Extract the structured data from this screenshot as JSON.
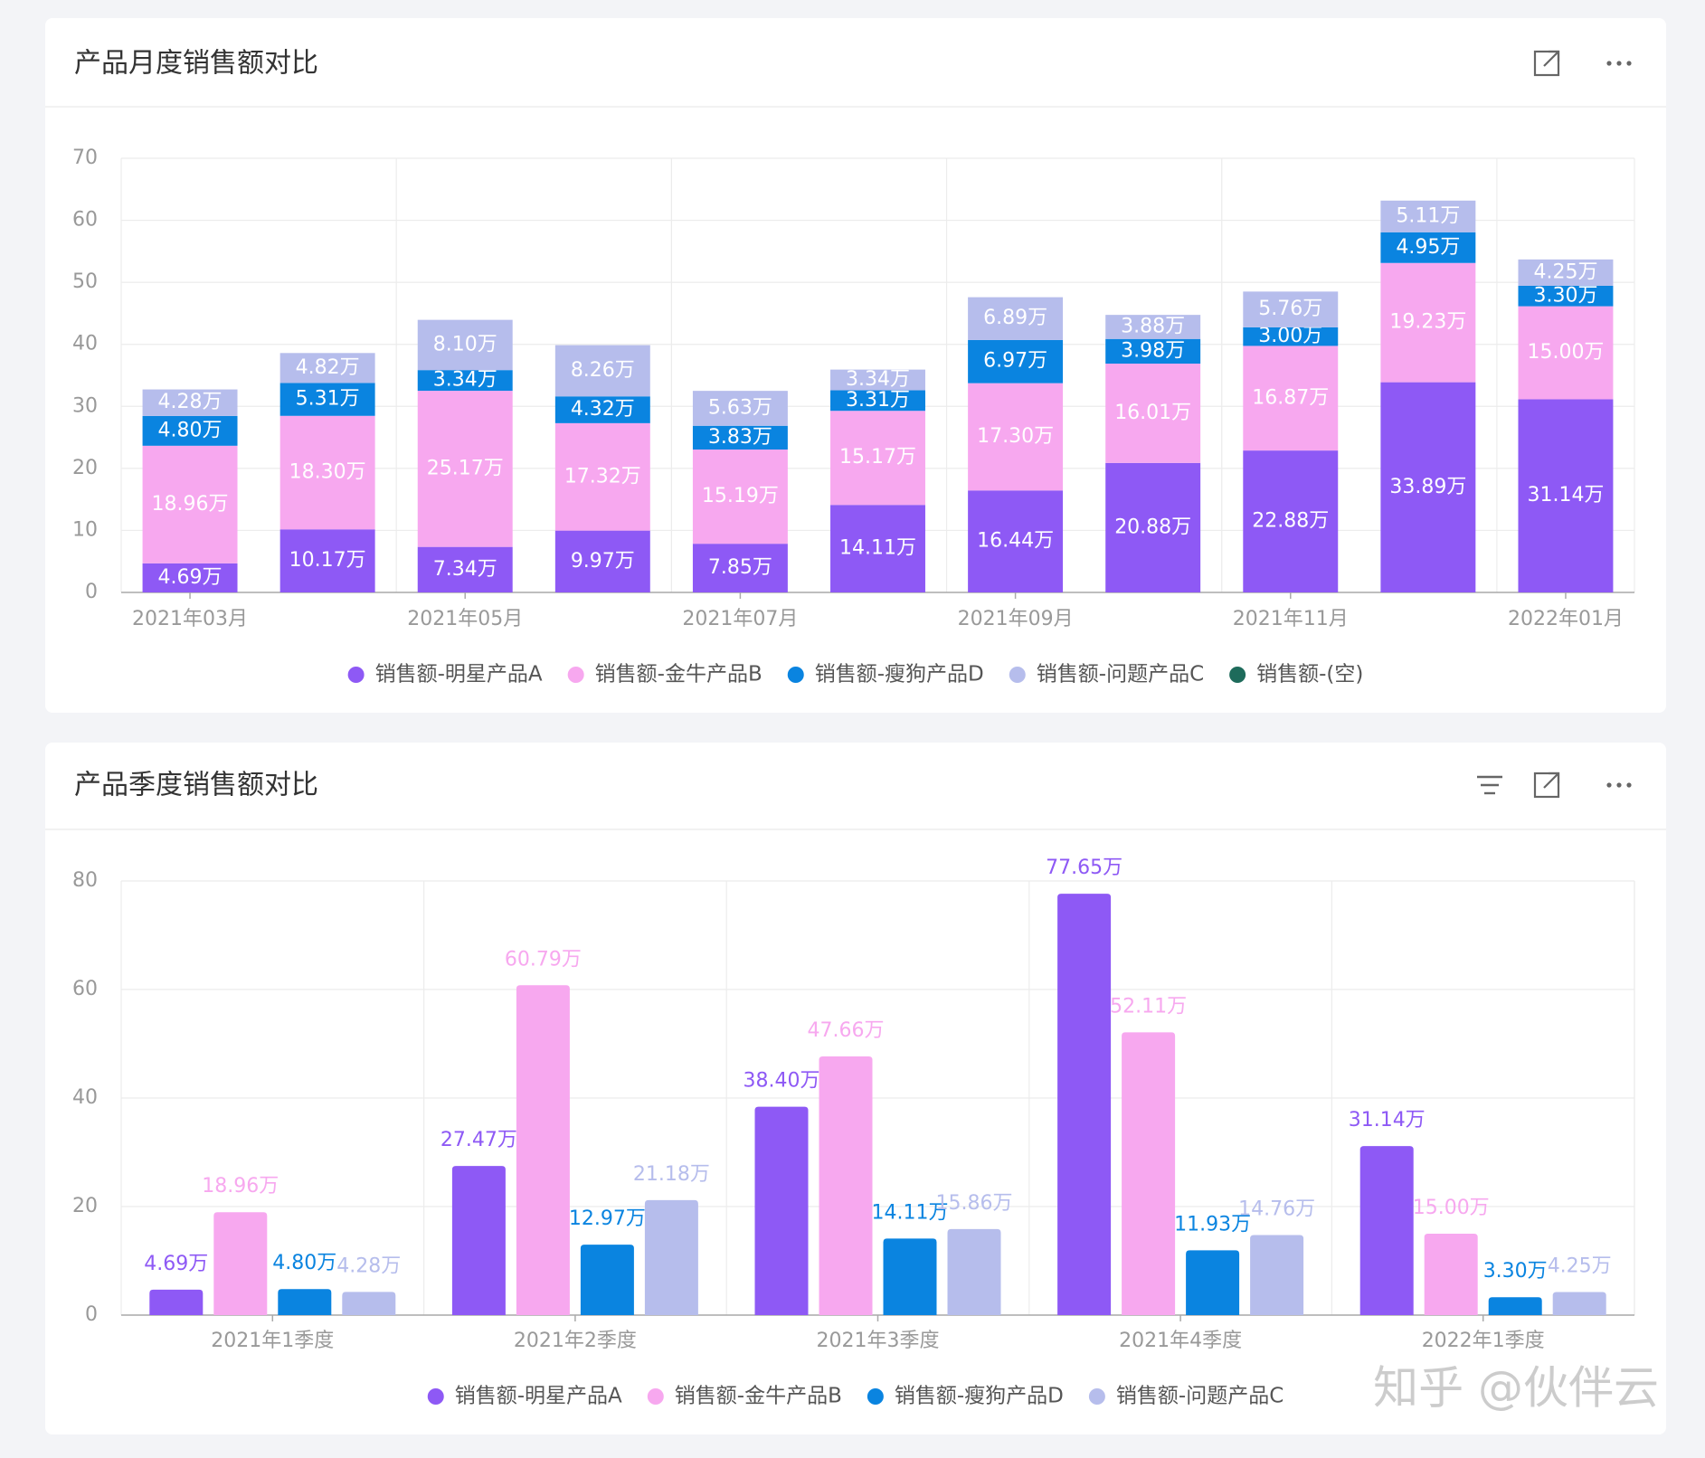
{
  "chart_data": [
    {
      "type": "bar",
      "stacked": true,
      "title": "产品月度销售额对比",
      "categories": [
        "2021年03月",
        null,
        "2021年05月",
        null,
        "2021年07月",
        null,
        "2021年09月",
        null,
        "2021年11月",
        null,
        "2022年01月"
      ],
      "series": [
        {
          "name": "销售额-明星产品A",
          "color": "#8e59f5",
          "values": [
            4.69,
            10.17,
            7.34,
            9.97,
            7.85,
            14.11,
            16.44,
            20.88,
            22.88,
            33.89,
            31.14
          ],
          "value_labels": [
            "4.69万",
            "10.17万",
            "7.34万",
            "9.97万",
            "7.85万",
            "14.11万",
            "16.44万",
            "20.88万",
            "22.88万",
            "33.89万",
            "31.14万"
          ]
        },
        {
          "name": "销售额-金牛产品B",
          "color": "#f7a8ef",
          "values": [
            18.96,
            18.3,
            25.17,
            17.32,
            15.19,
            15.17,
            17.3,
            16.01,
            16.87,
            19.23,
            15.0
          ],
          "value_labels": [
            "18.96万",
            "18.30万",
            "25.17万",
            "17.32万",
            "15.19万",
            "15.17万",
            "17.30万",
            "16.01万",
            "16.87万",
            "19.23万",
            "15.00万"
          ]
        },
        {
          "name": "销售额-瘦狗产品D",
          "color": "#0a84e0",
          "values": [
            4.8,
            5.31,
            3.34,
            4.32,
            3.83,
            3.31,
            6.97,
            3.98,
            3.0,
            4.95,
            3.3
          ],
          "value_labels": [
            "4.80万",
            "5.31万",
            "3.34万",
            "4.32万",
            "3.83万",
            "3.31万",
            "6.97万",
            "3.98万",
            "3.00万",
            "4.95万",
            "3.30万"
          ]
        },
        {
          "name": "销售额-问题产品C",
          "color": "#b6bdec",
          "values": [
            4.28,
            4.82,
            8.1,
            8.26,
            5.63,
            3.34,
            6.89,
            3.88,
            5.76,
            5.11,
            4.25
          ],
          "value_labels": [
            "4.28万",
            "4.82万",
            "8.10万",
            "8.26万",
            "5.63万",
            "3.34万",
            "6.89万",
            "3.88万",
            "5.76万",
            "5.11万",
            "4.25万"
          ]
        },
        {
          "name": "销售额-(空)",
          "color": "#1e6b5b",
          "values": [
            null,
            null,
            null,
            null,
            null,
            null,
            null,
            null,
            null,
            null,
            null
          ]
        }
      ],
      "ylim": [
        0,
        70
      ],
      "yticks": [
        0,
        10,
        20,
        30,
        40,
        50,
        60,
        70
      ],
      "grid": true,
      "legend": "bottom"
    },
    {
      "type": "bar",
      "stacked": false,
      "title": "产品季度销售额对比",
      "categories": [
        "2021年1季度",
        "2021年2季度",
        "2021年3季度",
        "2021年4季度",
        "2022年1季度"
      ],
      "series": [
        {
          "name": "销售额-明星产品A",
          "color": "#8e59f5",
          "values": [
            4.69,
            27.47,
            38.4,
            77.65,
            31.14
          ],
          "value_labels": [
            "4.69万",
            "27.47万",
            "38.40万",
            "77.65万",
            "31.14万"
          ]
        },
        {
          "name": "销售额-金牛产品B",
          "color": "#f7a8ef",
          "values": [
            18.96,
            60.79,
            47.66,
            52.11,
            15.0
          ],
          "value_labels": [
            "18.96万",
            "60.79万",
            "47.66万",
            "52.11万",
            "15.00万"
          ]
        },
        {
          "name": "销售额-瘦狗产品D",
          "color": "#0a84e0",
          "values": [
            4.8,
            12.97,
            14.11,
            11.93,
            3.3
          ],
          "value_labels": [
            "4.80万",
            "12.97万",
            "14.11万",
            "11.93万",
            "3.30万"
          ]
        },
        {
          "name": "销售额-问题产品C",
          "color": "#b6bdec",
          "values": [
            4.28,
            21.18,
            15.86,
            14.76,
            4.25
          ],
          "value_labels": [
            "4.28万",
            "21.18万",
            "15.86万",
            "14.76万",
            "4.25万"
          ]
        }
      ],
      "ylim": [
        0,
        80
      ],
      "yticks": [
        0,
        20,
        40,
        60,
        80
      ],
      "grid": true,
      "legend": "bottom"
    }
  ],
  "watermark": "知乎 @伙伴云"
}
